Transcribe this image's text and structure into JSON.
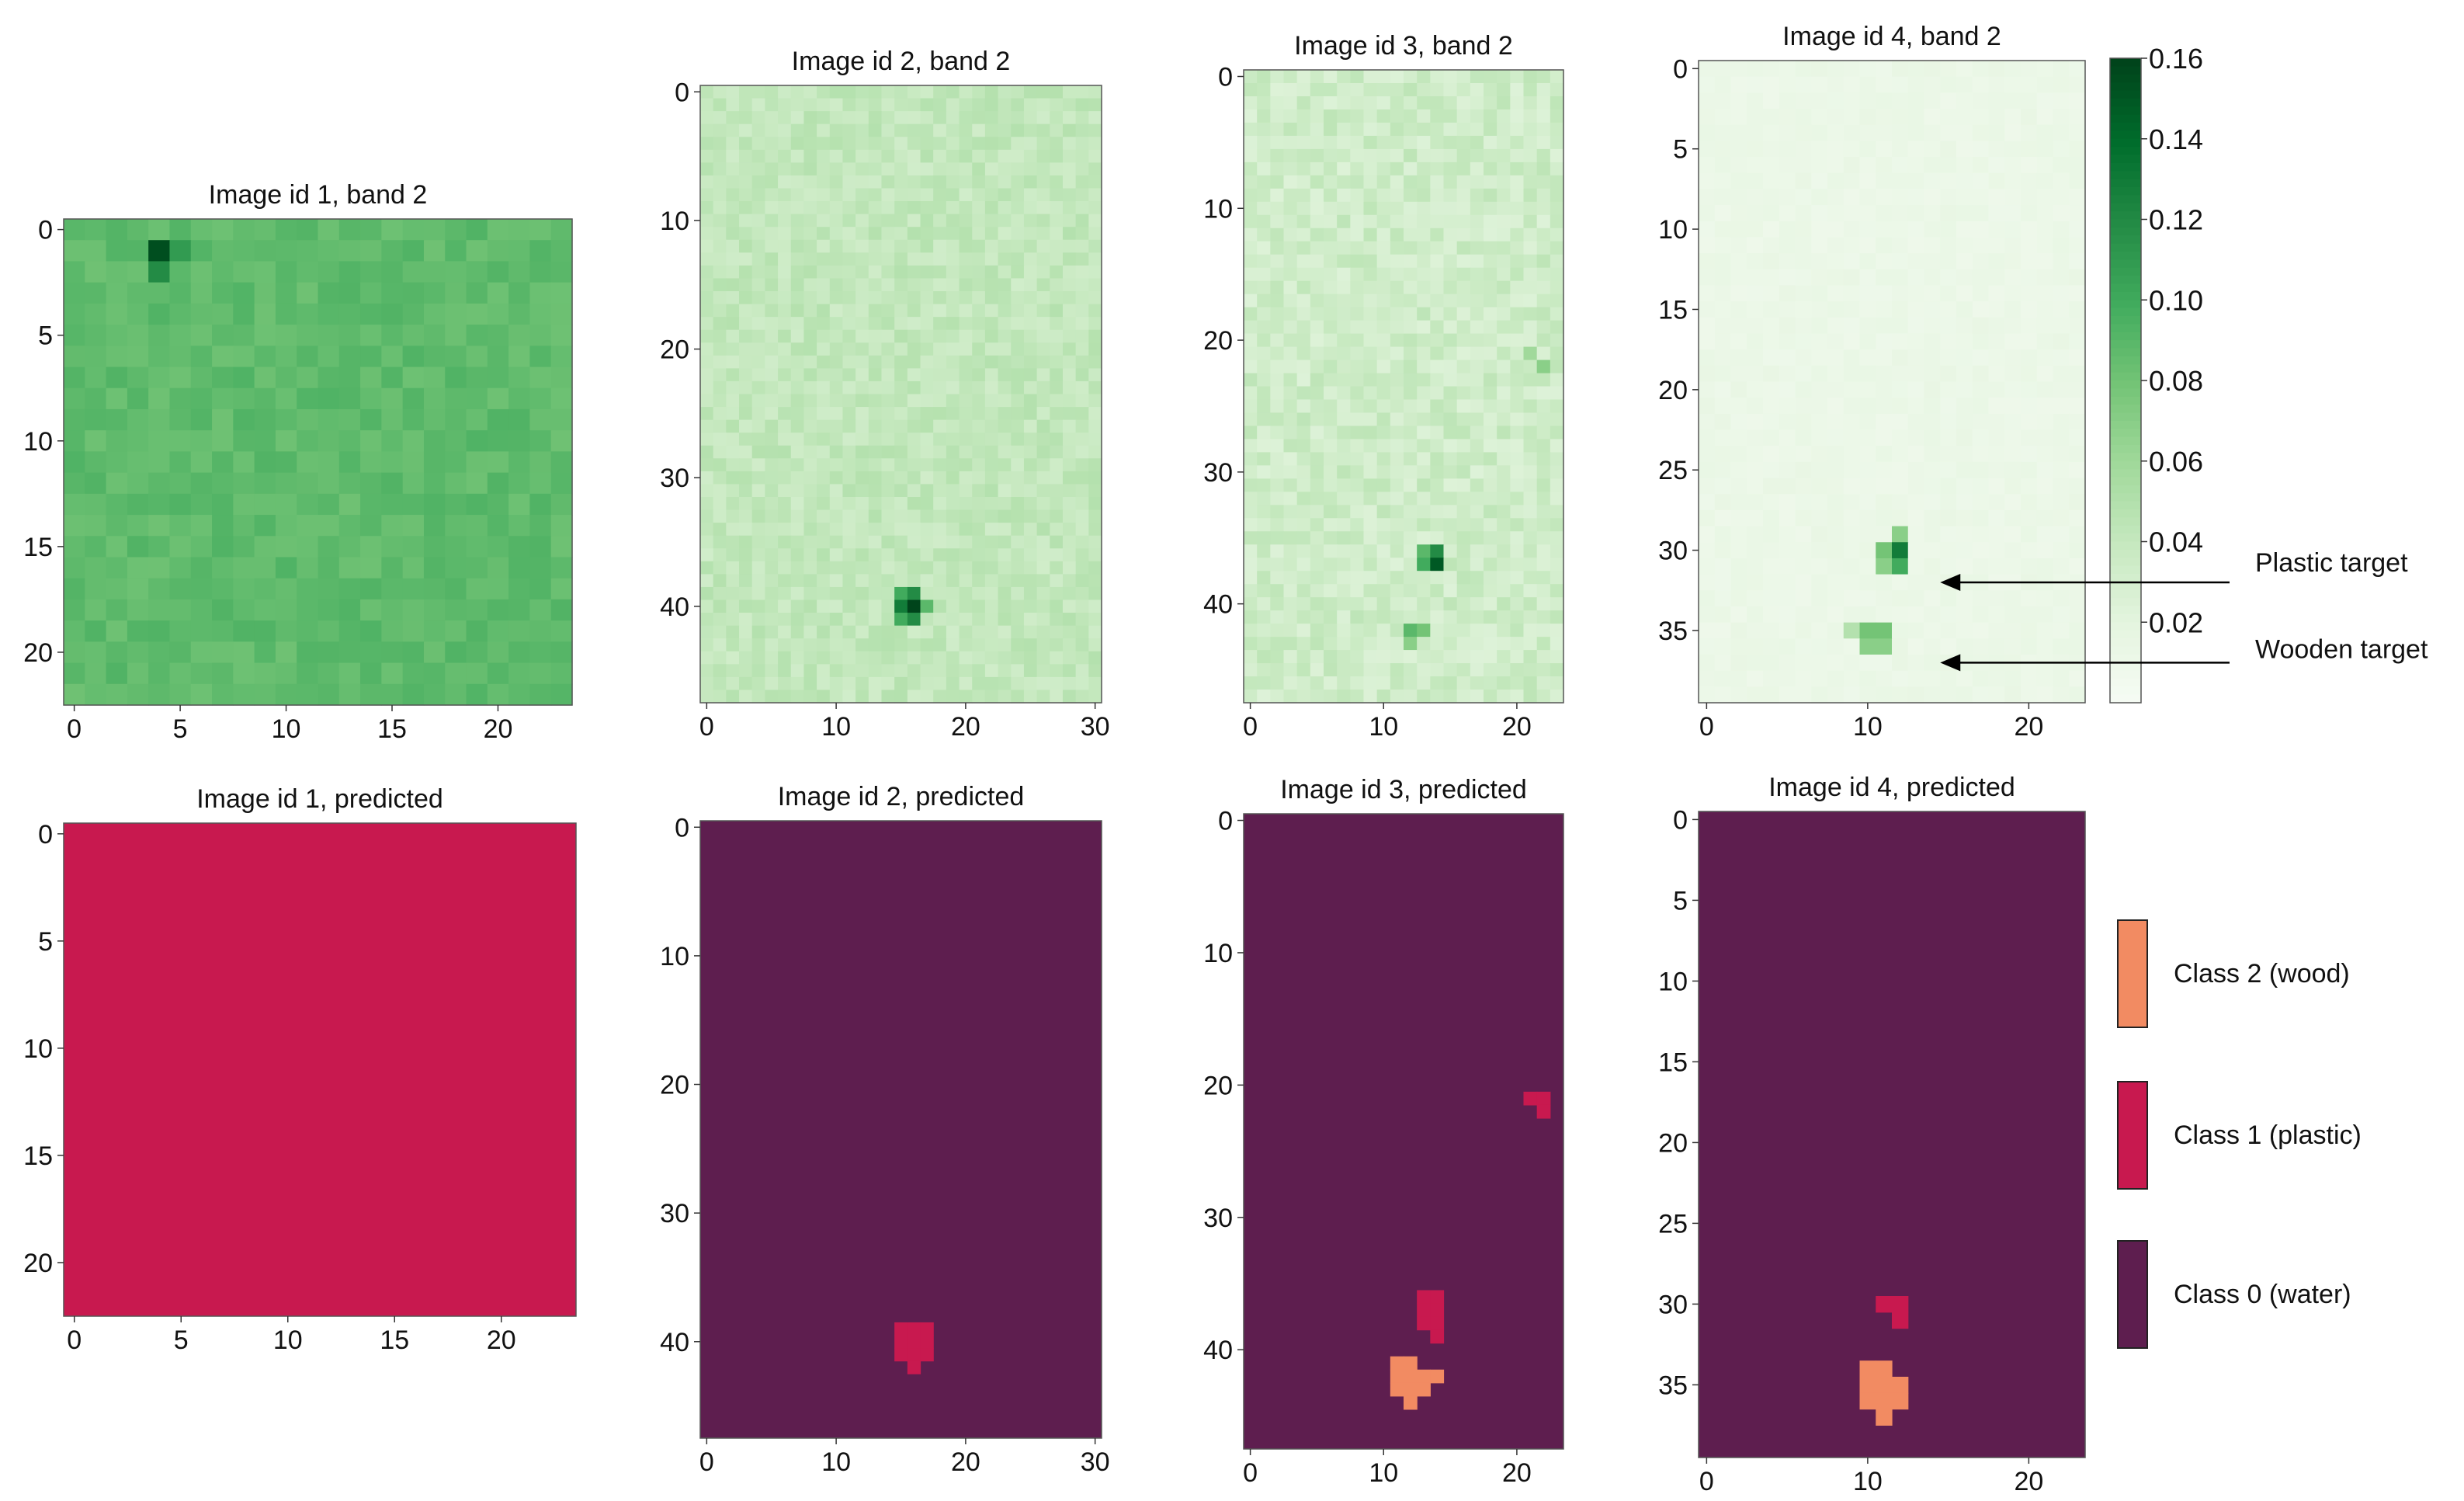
{
  "figure": {
    "colormap": "Greens",
    "class_colors": [
      "#5e1e4f",
      "#c8194f",
      "#f28b62"
    ]
  },
  "chart_data": [
    {
      "type": "heatmap",
      "title": "Image id 1, band 2",
      "cols": 24,
      "rows": 23,
      "xticks": [
        0,
        5,
        10,
        15,
        20
      ],
      "yticks": [
        0,
        5,
        10,
        15,
        20
      ],
      "base_value": 0.088,
      "noise": 0.006,
      "hotspots": [
        {
          "x": 4,
          "y": 1,
          "value": 0.155
        },
        {
          "x": 5,
          "y": 1,
          "value": 0.11
        },
        {
          "x": 4,
          "y": 2,
          "value": 0.12
        }
      ]
    },
    {
      "type": "heatmap",
      "title": "Image id 2, band 2",
      "cols": 31,
      "rows": 48,
      "xticks": [
        0,
        10,
        20,
        30
      ],
      "yticks": [
        0,
        10,
        20,
        30,
        40
      ],
      "base_value": 0.042,
      "noise": 0.008,
      "hotspots": [
        {
          "x": 16,
          "y": 40,
          "value": 0.16
        },
        {
          "x": 15,
          "y": 40,
          "value": 0.13
        },
        {
          "x": 16,
          "y": 39,
          "value": 0.12
        },
        {
          "x": 16,
          "y": 41,
          "value": 0.12
        },
        {
          "x": 15,
          "y": 39,
          "value": 0.1
        },
        {
          "x": 15,
          "y": 41,
          "value": 0.1
        },
        {
          "x": 17,
          "y": 40,
          "value": 0.09
        }
      ]
    },
    {
      "type": "heatmap",
      "title": "Image id 3, band 2",
      "cols": 24,
      "rows": 48,
      "xticks": [
        0,
        10,
        20
      ],
      "yticks": [
        0,
        10,
        20,
        30,
        40
      ],
      "base_value": 0.035,
      "noise": 0.01,
      "hotspots": [
        {
          "x": 14,
          "y": 37,
          "value": 0.15
        },
        {
          "x": 14,
          "y": 36,
          "value": 0.12
        },
        {
          "x": 13,
          "y": 37,
          "value": 0.1
        },
        {
          "x": 13,
          "y": 36,
          "value": 0.09
        },
        {
          "x": 12,
          "y": 42,
          "value": 0.09
        },
        {
          "x": 13,
          "y": 42,
          "value": 0.08
        },
        {
          "x": 12,
          "y": 43,
          "value": 0.07
        },
        {
          "x": 22,
          "y": 22,
          "value": 0.07
        },
        {
          "x": 21,
          "y": 21,
          "value": 0.06
        }
      ]
    },
    {
      "type": "heatmap",
      "title": "Image id 4, band 2",
      "cols": 24,
      "rows": 40,
      "xticks": [
        0,
        10,
        20
      ],
      "yticks": [
        0,
        5,
        10,
        15,
        20,
        25,
        30,
        35
      ],
      "base_value": 0.013,
      "noise": 0.003,
      "colorbar": {
        "min": 0.0,
        "max": 0.16,
        "ticks": [
          0.02,
          0.04,
          0.06,
          0.08,
          0.1,
          0.12,
          0.14,
          0.16
        ]
      },
      "annotations": [
        {
          "text": "Plastic target",
          "x": 15,
          "y": 32
        },
        {
          "text": "Wooden target",
          "x": 15,
          "y": 37
        }
      ],
      "hotspots": [
        {
          "x": 12,
          "y": 30,
          "value": 0.13
        },
        {
          "x": 12,
          "y": 31,
          "value": 0.1
        },
        {
          "x": 11,
          "y": 30,
          "value": 0.08
        },
        {
          "x": 11,
          "y": 31,
          "value": 0.07
        },
        {
          "x": 12,
          "y": 29,
          "value": 0.07
        },
        {
          "x": 10,
          "y": 35,
          "value": 0.08
        },
        {
          "x": 11,
          "y": 35,
          "value": 0.08
        },
        {
          "x": 10,
          "y": 36,
          "value": 0.07
        },
        {
          "x": 11,
          "y": 36,
          "value": 0.07
        },
        {
          "x": 9,
          "y": 35,
          "value": 0.05
        }
      ]
    },
    {
      "type": "heatmap",
      "title": "Image id 1, predicted",
      "cols": 24,
      "rows": 23,
      "xticks": [
        0,
        5,
        10,
        15,
        20
      ],
      "yticks": [
        0,
        5,
        10,
        15,
        20
      ],
      "default_class": 1,
      "class_cells": []
    },
    {
      "type": "heatmap",
      "title": "Image id 2, predicted",
      "cols": 31,
      "rows": 48,
      "xticks": [
        0,
        10,
        20,
        30
      ],
      "yticks": [
        0,
        10,
        20,
        30,
        40
      ],
      "default_class": 0,
      "class_cells": [
        {
          "class": 1,
          "cells": [
            [
              15,
              39
            ],
            [
              16,
              39
            ],
            [
              17,
              39
            ],
            [
              15,
              40
            ],
            [
              16,
              40
            ],
            [
              17,
              40
            ],
            [
              15,
              41
            ],
            [
              16,
              41
            ],
            [
              17,
              41
            ],
            [
              16,
              42
            ]
          ]
        }
      ]
    },
    {
      "type": "heatmap",
      "title": "Image id 3, predicted",
      "cols": 24,
      "rows": 48,
      "xticks": [
        0,
        10,
        20
      ],
      "yticks": [
        0,
        10,
        20,
        30,
        40
      ],
      "default_class": 0,
      "class_cells": [
        {
          "class": 1,
          "cells": [
            [
              21,
              21
            ],
            [
              22,
              21
            ],
            [
              22,
              22
            ],
            [
              13,
              36
            ],
            [
              14,
              36
            ],
            [
              13,
              37
            ],
            [
              14,
              37
            ],
            [
              13,
              38
            ],
            [
              14,
              38
            ],
            [
              14,
              39
            ]
          ]
        },
        {
          "class": 2,
          "cells": [
            [
              11,
              41
            ],
            [
              12,
              41
            ],
            [
              11,
              42
            ],
            [
              12,
              42
            ],
            [
              13,
              42
            ],
            [
              14,
              42
            ],
            [
              11,
              43
            ],
            [
              12,
              43
            ],
            [
              13,
              43
            ],
            [
              12,
              44
            ]
          ]
        }
      ]
    },
    {
      "type": "heatmap",
      "title": "Image id 4, predicted",
      "cols": 24,
      "rows": 40,
      "xticks": [
        0,
        10,
        20
      ],
      "yticks": [
        0,
        5,
        10,
        15,
        20,
        25,
        30,
        35
      ],
      "default_class": 0,
      "legend": [
        {
          "class": 2,
          "label": "Class 2 (wood)"
        },
        {
          "class": 1,
          "label": "Class 1 (plastic)"
        },
        {
          "class": 0,
          "label": "Class 0 (water)"
        }
      ],
      "class_cells": [
        {
          "class": 1,
          "cells": [
            [
              11,
              30
            ],
            [
              12,
              30
            ],
            [
              12,
              31
            ]
          ]
        },
        {
          "class": 2,
          "cells": [
            [
              10,
              34
            ],
            [
              11,
              34
            ],
            [
              10,
              35
            ],
            [
              11,
              35
            ],
            [
              12,
              35
            ],
            [
              10,
              36
            ],
            [
              11,
              36
            ],
            [
              12,
              36
            ],
            [
              11,
              37
            ]
          ]
        }
      ]
    }
  ]
}
